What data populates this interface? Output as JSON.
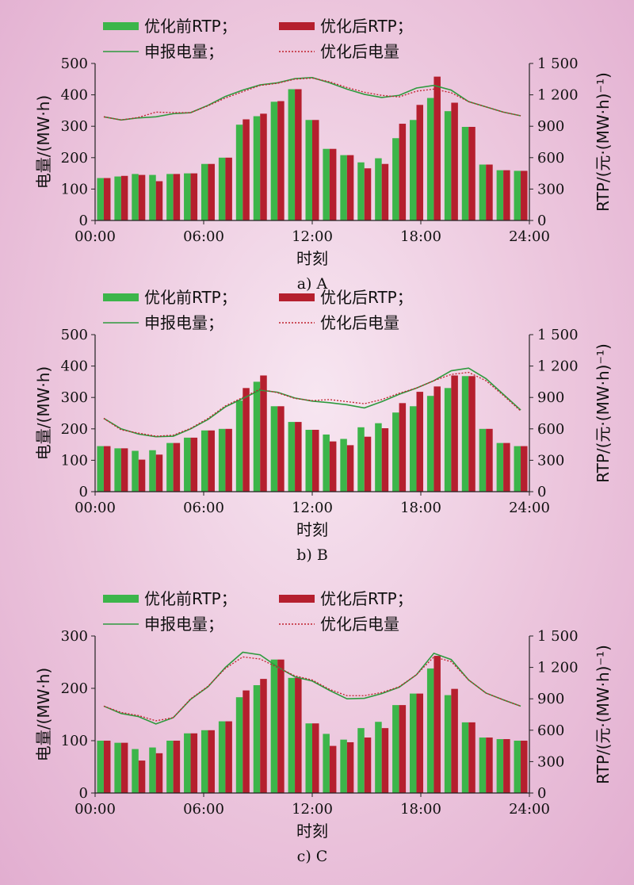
{
  "colors": {
    "before": "#3cb54a",
    "after": "#b51f2e",
    "declared": "#2e9a3e",
    "optimized": "#c0202c"
  },
  "legend": {
    "before_rtp": "优化前RTP；",
    "after_rtp": "优化后RTP；",
    "declared_load": "申报电量；",
    "optimized_load": "优化后电量"
  },
  "axes": {
    "left_title": "电量/(MW·h)",
    "right_title": "RTP/(元·(MW·h)⁻¹)",
    "x_title": "时刻",
    "x_ticks": [
      "00:00",
      "06:00",
      "12:00",
      "18:00",
      "24:00"
    ]
  },
  "chart_data": [
    {
      "type": "bar",
      "caption": "a) A",
      "x_hours": [
        0,
        1,
        2,
        3,
        4,
        5,
        6,
        7,
        8,
        9,
        10,
        11,
        12,
        13,
        14,
        15,
        16,
        17,
        18,
        19,
        20,
        21,
        22,
        23,
        24
      ],
      "left_ylim": [
        0,
        500
      ],
      "left_ticks": [
        "0",
        "100",
        "200",
        "300",
        "400",
        "500"
      ],
      "right_ylim": [
        0,
        1500
      ],
      "right_ticks": [
        "0",
        "300",
        "600",
        "900",
        "1 200",
        "1 500"
      ],
      "series": [
        {
          "name": "优化前RTP；",
          "type": "bar",
          "axis": "left",
          "values": [
            135,
            140,
            148,
            145,
            148,
            150,
            180,
            200,
            305,
            332,
            378,
            418,
            320,
            228,
            208,
            185,
            198,
            262,
            320,
            390,
            348,
            298,
            178,
            160,
            158
          ]
        },
        {
          "name": "优化后RTP；",
          "type": "bar",
          "axis": "left",
          "values": [
            135,
            142,
            145,
            125,
            148,
            150,
            180,
            200,
            322,
            340,
            380,
            418,
            320,
            228,
            208,
            166,
            180,
            308,
            368,
            458,
            375,
            298,
            178,
            160,
            158
          ]
        },
        {
          "name": "申报电量；",
          "type": "line",
          "axis": "right",
          "values": [
            990,
            960,
            980,
            990,
            1020,
            1030,
            1100,
            1185,
            1245,
            1295,
            1315,
            1355,
            1365,
            1315,
            1255,
            1205,
            1175,
            1195,
            1265,
            1290,
            1245,
            1135,
            1085,
            1035,
            1000
          ]
        },
        {
          "name": "优化后电量",
          "type": "line",
          "axis": "right",
          "values": [
            990,
            960,
            985,
            1035,
            1030,
            1030,
            1095,
            1170,
            1230,
            1290,
            1310,
            1350,
            1360,
            1325,
            1270,
            1225,
            1195,
            1180,
            1235,
            1255,
            1220,
            1135,
            1085,
            1035,
            1000
          ]
        }
      ]
    },
    {
      "type": "bar",
      "caption": "b) B",
      "x_hours": [
        0,
        1,
        2,
        3,
        4,
        5,
        6,
        7,
        8,
        9,
        10,
        11,
        12,
        13,
        14,
        15,
        16,
        17,
        18,
        19,
        20,
        21,
        22,
        23,
        24
      ],
      "left_ylim": [
        0,
        500
      ],
      "left_ticks": [
        "0",
        "100",
        "200",
        "300",
        "400",
        "500"
      ],
      "right_ylim": [
        0,
        1500
      ],
      "right_ticks": [
        "0",
        "300",
        "600",
        "900",
        "1 200",
        "1 500"
      ],
      "series": [
        {
          "name": "优化前RTP；",
          "type": "bar",
          "axis": "left",
          "values": [
            145,
            138,
            130,
            132,
            155,
            172,
            195,
            200,
            290,
            350,
            272,
            222,
            197,
            182,
            168,
            205,
            218,
            252,
            272,
            305,
            330,
            368,
            200,
            155,
            145
          ]
        },
        {
          "name": "优化后RTP；",
          "type": "bar",
          "axis": "left",
          "values": [
            145,
            138,
            102,
            118,
            155,
            172,
            195,
            200,
            330,
            370,
            272,
            222,
            197,
            160,
            148,
            175,
            202,
            282,
            318,
            335,
            370,
            368,
            200,
            155,
            145
          ]
        },
        {
          "name": "申报电量；",
          "type": "line",
          "axis": "right",
          "values": [
            700,
            600,
            550,
            525,
            530,
            600,
            690,
            810,
            890,
            970,
            950,
            895,
            865,
            850,
            830,
            800,
            860,
            930,
            990,
            1060,
            1155,
            1180,
            1080,
            930,
            780
          ]
        },
        {
          "name": "优化后电量",
          "type": "line",
          "axis": "right",
          "values": [
            700,
            590,
            560,
            530,
            540,
            605,
            700,
            820,
            900,
            980,
            945,
            890,
            870,
            880,
            860,
            840,
            880,
            940,
            990,
            1060,
            1120,
            1140,
            1060,
            920,
            770
          ]
        }
      ]
    },
    {
      "type": "bar",
      "caption": "c) C",
      "x_hours": [
        0,
        1,
        2,
        3,
        4,
        5,
        6,
        7,
        8,
        9,
        10,
        11,
        12,
        13,
        14,
        15,
        16,
        17,
        18,
        19,
        20,
        21,
        22,
        23,
        24
      ],
      "left_ylim": [
        0,
        300
      ],
      "left_ticks": [
        "0",
        "100",
        "200",
        "300"
      ],
      "right_ylim": [
        0,
        1500
      ],
      "right_ticks": [
        "0",
        "300",
        "600",
        "900",
        "1 200",
        "1 500"
      ],
      "series": [
        {
          "name": "优化前RTP；",
          "type": "bar",
          "axis": "left",
          "values": [
            100,
            96,
            84,
            87,
            100,
            114,
            120,
            137,
            183,
            206,
            255,
            220,
            133,
            113,
            102,
            124,
            136,
            168,
            190,
            238,
            187,
            135,
            106,
            103,
            100
          ]
        },
        {
          "name": "优化后RTP；",
          "type": "bar",
          "axis": "left",
          "values": [
            100,
            96,
            62,
            76,
            100,
            114,
            120,
            137,
            196,
            218,
            255,
            220,
            133,
            90,
            97,
            106,
            124,
            168,
            190,
            262,
            199,
            135,
            106,
            103,
            100
          ]
        },
        {
          "name": "申报电量；",
          "type": "line",
          "axis": "right",
          "values": [
            830,
            760,
            730,
            660,
            720,
            895,
            1015,
            1200,
            1345,
            1320,
            1205,
            1110,
            1070,
            980,
            900,
            905,
            950,
            1010,
            1130,
            1335,
            1275,
            1080,
            955,
            890,
            830
          ]
        },
        {
          "name": "优化后电量",
          "type": "line",
          "axis": "right",
          "values": [
            830,
            770,
            740,
            690,
            720,
            900,
            1020,
            1190,
            1300,
            1280,
            1200,
            1120,
            1080,
            990,
            930,
            930,
            960,
            1015,
            1130,
            1300,
            1255,
            1080,
            955,
            890,
            830
          ]
        }
      ]
    }
  ]
}
